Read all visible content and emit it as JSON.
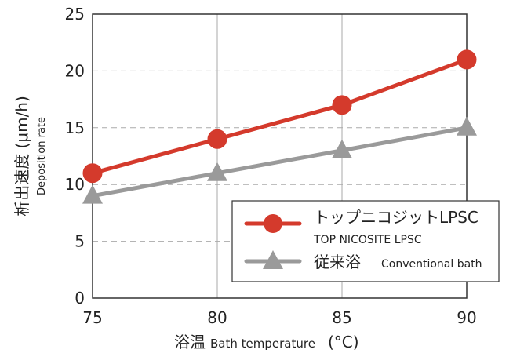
{
  "chart_data": {
    "type": "line",
    "x": [
      75,
      80,
      85,
      90
    ],
    "xlim": [
      75,
      90
    ],
    "ylim": [
      0,
      25
    ],
    "yticks": [
      0,
      5,
      10,
      15,
      20,
      25
    ],
    "xticks": [
      75,
      80,
      85,
      90
    ],
    "xlabel": "浴温",
    "xlabel_sub": "Bath temperature",
    "xlabel_unit": "(°C)",
    "ylabel": "析出速度 (μm/h)",
    "ylabel_sub": "Deposition rate",
    "grid": "dashed horizontal, solid vertical",
    "legend_position": "lower-right",
    "series": [
      {
        "name": "トップニコジットLPSC",
        "name_sub": "TOP NICOSITE LPSC",
        "values": [
          11,
          14,
          17,
          21
        ],
        "color": "#d43a2c",
        "marker": "circle"
      },
      {
        "name": "従来浴",
        "name_sub": "Conventional bath",
        "values": [
          9,
          11,
          13,
          15
        ],
        "color": "#9a9a9a",
        "marker": "triangle"
      }
    ]
  }
}
